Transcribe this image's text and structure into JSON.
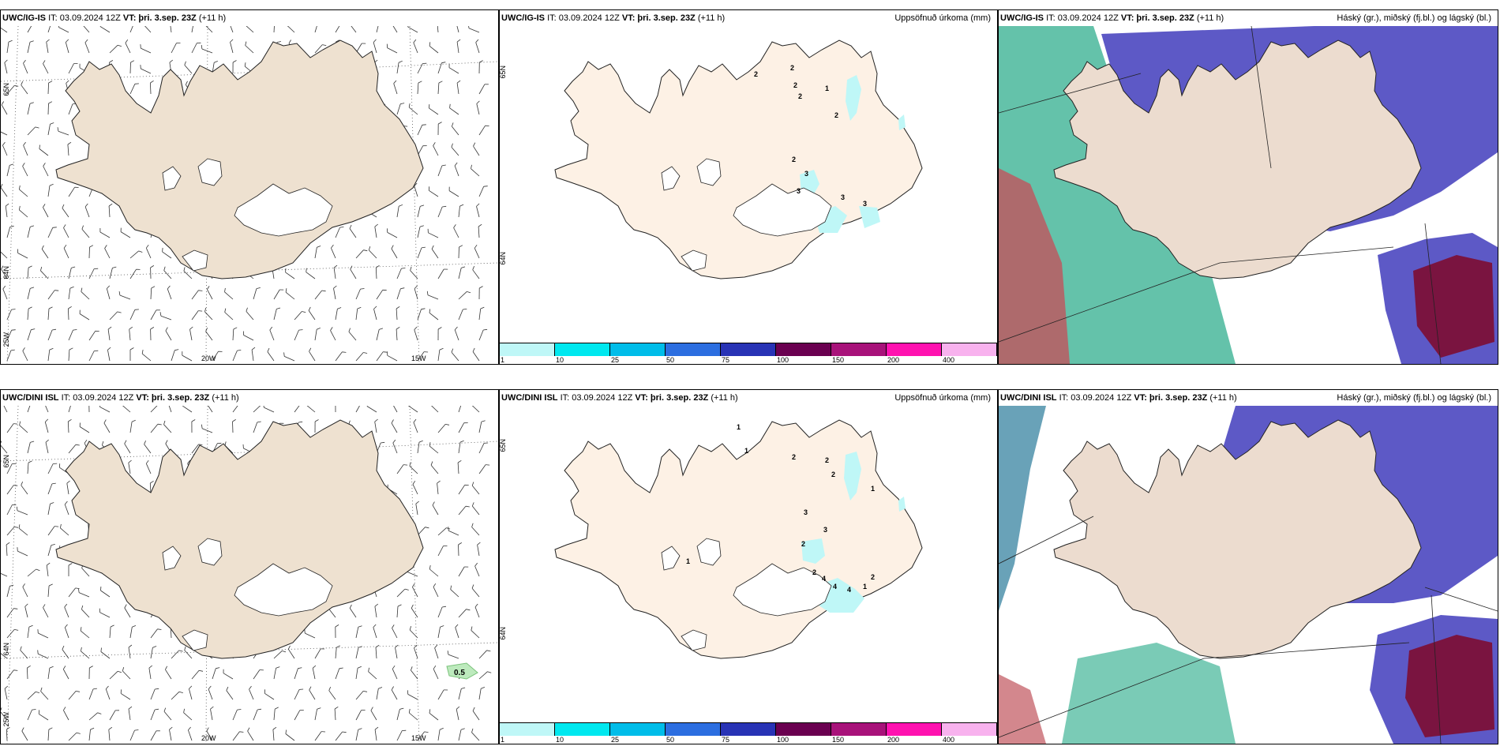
{
  "common": {
    "it": "IT: 03.09.2024 12Z",
    "vt": "VT: þri. 3.sep. 23Z",
    "lead": "(+11 h)",
    "lat_65": "65N",
    "lat_64": "64N",
    "lon_25": "25W",
    "lon_20": "20W",
    "lon_15": "15W",
    "precip_title": "Uppsöfnuð úrkoma (mm)",
    "cloud_title": "Háský (gr.), miðský (fj.bl.) og lágský (bl.)",
    "contour_label": "0.5"
  },
  "models": {
    "top": "UWC/IG-IS",
    "bottom": "UWC/DINI ISL"
  },
  "colorbar": {
    "colors": [
      "#bff7f7",
      "#00e8ef",
      "#00bde9",
      "#2c6ee0",
      "#2833b5",
      "#6a0050",
      "#a8127a",
      "#ff12b0",
      "#f8b2ee"
    ],
    "ticks": [
      "1",
      "10",
      "25",
      "50",
      "75",
      "100",
      "150",
      "200",
      "400"
    ]
  },
  "precip_top": [
    "2",
    "2",
    "2",
    "2",
    "1",
    "2",
    "2",
    "3",
    "3",
    "3",
    "3"
  ],
  "precip_bottom": [
    "1",
    "1",
    "2",
    "2",
    "2",
    "1",
    "3",
    "3",
    "2",
    "2",
    "4",
    "4",
    "4",
    "1",
    "2",
    "1"
  ],
  "colors": {
    "land_wind": "#eee1d0",
    "land_precip": "#fdf1e5",
    "land_cloud": "#ecdccf",
    "high_cloud": "#5d59c6",
    "mid_cloud": "#20a887",
    "low_cloud": "#7a1440"
  }
}
